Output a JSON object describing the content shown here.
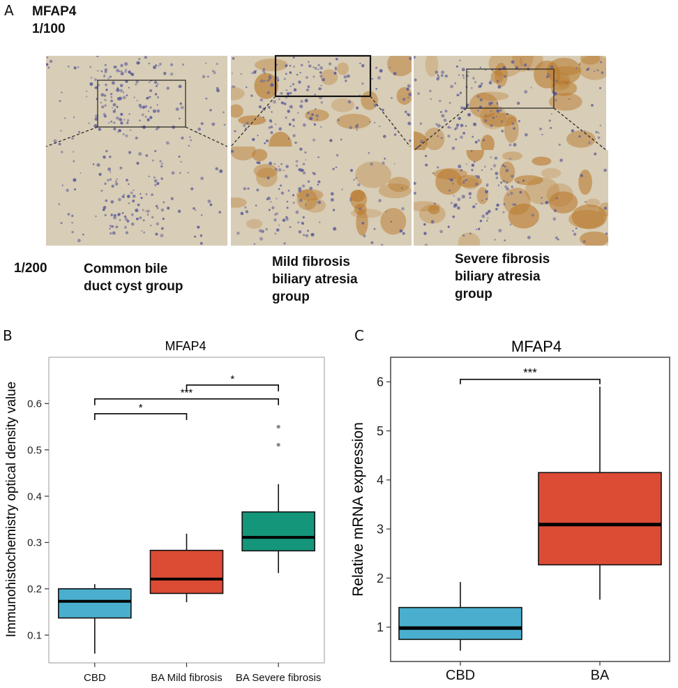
{
  "panel_a": {
    "letter": "A",
    "stain": "MFAP4",
    "mag_top": "1/100",
    "mag_bottom": "1/200",
    "groups": [
      {
        "line1": "Common bile",
        "line2": "duct cyst group",
        "line3": ""
      },
      {
        "line1": "Mild fibrosis",
        "line2": "biliary atresia",
        "line3": "group"
      },
      {
        "line1": "Severe fibrosis",
        "line2": "biliary atresia",
        "line3": "group"
      }
    ],
    "colors": {
      "tissue": "#d8cdb6",
      "nuclei": "#5a5b98",
      "stain": "#b8782a"
    }
  },
  "chart_data": [
    {
      "panel": "B",
      "type": "box",
      "title": "MFAP4",
      "xlabel": "",
      "ylabel": "Immunohistochemistry optical density value",
      "categories": [
        "CBD",
        "BA Mild fibrosis",
        "BA Severe fibrosis"
      ],
      "ylim": [
        0.04,
        0.7
      ],
      "yticks": [
        "0.1",
        "0.2",
        "0.3",
        "0.4",
        "0.5",
        "0.6"
      ],
      "boxes": [
        {
          "category": "CBD",
          "min": 0.06,
          "q1": 0.137,
          "median": 0.173,
          "q3": 0.2,
          "max": 0.21,
          "outliers": [],
          "color": "#4aafcf"
        },
        {
          "category": "BA Mild fibrosis",
          "min": 0.171,
          "q1": 0.19,
          "median": 0.221,
          "q3": 0.283,
          "max": 0.319,
          "outliers": [],
          "color": "#dc4c35"
        },
        {
          "category": "BA Severe fibrosis",
          "min": 0.234,
          "q1": 0.282,
          "median": 0.311,
          "q3": 0.366,
          "max": 0.426,
          "outliers": [
            0.511,
            0.55
          ],
          "color": "#14967a"
        }
      ],
      "significance": [
        {
          "from": "CBD",
          "to": "BA Mild fibrosis",
          "label": "*",
          "y": 0.578
        },
        {
          "from": "CBD",
          "to": "BA Severe fibrosis",
          "label": "***",
          "y": 0.61
        },
        {
          "from": "BA Mild fibrosis",
          "to": "BA Severe fibrosis",
          "label": "*",
          "y": 0.64
        }
      ]
    },
    {
      "panel": "C",
      "type": "box",
      "title": "MFAP4",
      "xlabel": "",
      "ylabel": "Relative mRNA expression",
      "categories": [
        "CBD",
        "BA"
      ],
      "ylim": [
        0.3,
        6.5
      ],
      "yticks": [
        "1",
        "2",
        "3",
        "4",
        "5",
        "6"
      ],
      "boxes": [
        {
          "category": "CBD",
          "min": 0.52,
          "q1": 0.75,
          "median": 0.98,
          "q3": 1.4,
          "max": 1.92,
          "outliers": [],
          "color": "#4aafcf"
        },
        {
          "category": "BA",
          "min": 1.56,
          "q1": 2.27,
          "median": 3.09,
          "q3": 4.15,
          "max": 5.9,
          "outliers": [],
          "color": "#dc4c35"
        }
      ],
      "significance": [
        {
          "from": "CBD",
          "to": "BA",
          "label": "***",
          "y": 6.05
        }
      ]
    }
  ]
}
